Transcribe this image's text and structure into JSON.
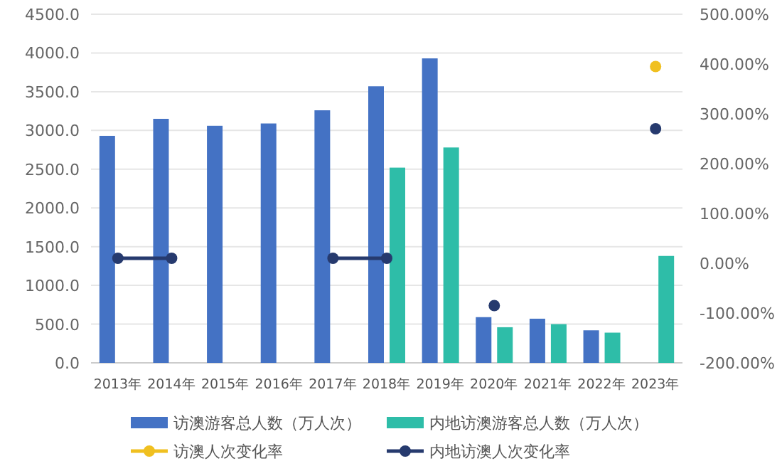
{
  "chart_data": {
    "type": "bar",
    "categories": [
      "2013年",
      "2014年",
      "2015年",
      "2016年",
      "2017年",
      "2018年",
      "2019年",
      "2020年",
      "2021年",
      "2022年",
      "2023年"
    ],
    "series": [
      {
        "name": "访澳游客总人数（万人次）",
        "color": "#4472c4",
        "values": [
          2930,
          3150,
          3060,
          3090,
          3260,
          3570,
          3930,
          590,
          570,
          420,
          null
        ]
      },
      {
        "name": "内地访澳游客总人数（万人次）",
        "color": "#2ebda8",
        "values": [
          null,
          null,
          null,
          null,
          null,
          2520,
          2780,
          460,
          500,
          390,
          1380
        ]
      },
      {
        "name": "访澳人次变化率",
        "type": "line",
        "axis": "y2",
        "color": "#f0c020",
        "values": [
          null,
          null,
          null,
          null,
          null,
          null,
          null,
          null,
          null,
          null,
          395
        ]
      },
      {
        "name": "内地访澳人次变化率",
        "type": "line",
        "axis": "y2",
        "color": "#263a6e",
        "values": [
          10,
          10,
          null,
          null,
          10,
          10,
          null,
          -85,
          null,
          null,
          270
        ]
      }
    ],
    "ylim": [
      0,
      4500
    ],
    "yticks": [
      {
        "value": 0,
        "label": "0.0"
      },
      {
        "value": 500,
        "label": "500.0"
      },
      {
        "value": 1000,
        "label": "1000.0"
      },
      {
        "value": 1500,
        "label": "1500.0"
      },
      {
        "value": 2000,
        "label": "2000.0"
      },
      {
        "value": 2500,
        "label": "2500.0"
      },
      {
        "value": 3000,
        "label": "3000.0"
      },
      {
        "value": 3500,
        "label": "3500.0"
      },
      {
        "value": 4000,
        "label": "4000.0"
      },
      {
        "value": 4500,
        "label": "4500.0"
      }
    ],
    "y2lim": [
      -200,
      500
    ],
    "y2ticks": [
      {
        "value": -200,
        "label": "-200.00%"
      },
      {
        "value": -100,
        "label": "-100.00%"
      },
      {
        "value": 0,
        "label": "0.00%"
      },
      {
        "value": 100,
        "label": "100.00%"
      },
      {
        "value": 200,
        "label": "200.00%"
      },
      {
        "value": 300,
        "label": "300.00%"
      },
      {
        "value": 400,
        "label": "400.00%"
      },
      {
        "value": 500,
        "label": "500.00%"
      }
    ],
    "grid": "y",
    "legend": "bottom",
    "marker": "circle"
  }
}
